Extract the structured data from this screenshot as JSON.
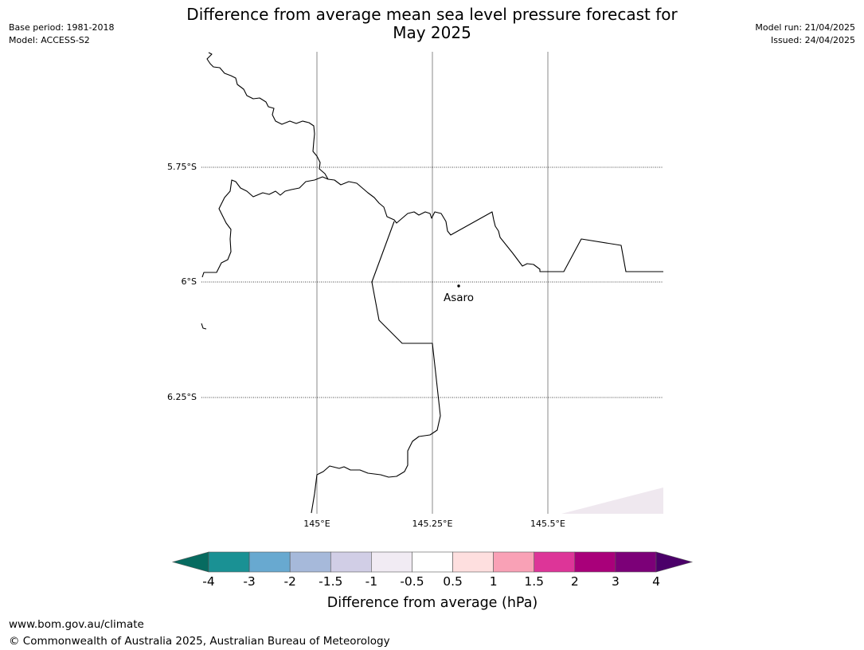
{
  "header": {
    "title_line1": "Difference from average mean sea level pressure forecast for",
    "title_line2": "May 2025",
    "base_period": "Base period: 1981-2018",
    "model": "Model: ACCESS-S2",
    "model_run": "Model run: 21/04/2025",
    "issued": "Issued: 24/04/2025"
  },
  "map": {
    "lat_ticks": [
      "5.75°S",
      "6°S",
      "6.25°S"
    ],
    "lon_ticks": [
      "145°E",
      "145.25°E",
      "145.5°E"
    ],
    "place_name": "Asaro",
    "coastline_color": "#000000"
  },
  "colorbar": {
    "tick_labels": [
      "-4",
      "-3",
      "-2",
      "-1.5",
      "-1",
      "-0.5",
      "0.5",
      "1",
      "1.5",
      "2",
      "3",
      "4"
    ],
    "label": "Difference from average (hPa)",
    "under_color": "#076b60",
    "over_color": "#4b0069",
    "colors": [
      "#1a9194",
      "#68a9d0",
      "#a6b9da",
      "#d1cee6",
      "#f1ebf3",
      "#ffffff",
      "#fedfdf",
      "#f9a1b6",
      "#dd3598",
      "#a9007a",
      "#7c0078"
    ]
  },
  "footer": {
    "url": "www.bom.gov.au/climate",
    "copyright": "© Commonwealth of Australia 2025, Australian Bureau of Meteorology"
  }
}
